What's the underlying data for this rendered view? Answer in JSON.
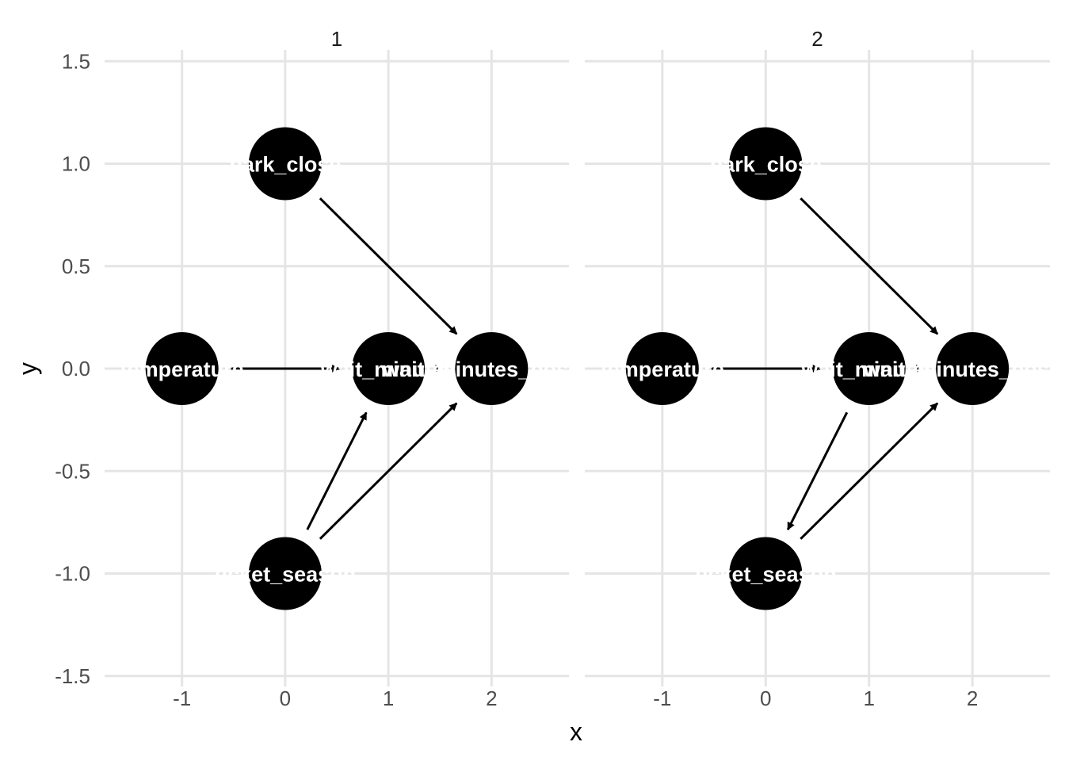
{
  "chart_data": {
    "type": "scatter",
    "xlabel": "x",
    "ylabel": "y",
    "xlim": [
      -1.75,
      2.75
    ],
    "ylim": [
      -1.5,
      1.5
    ],
    "x_ticks": [
      "-1",
      "0",
      "1",
      "2"
    ],
    "x_tick_values": [
      -1,
      0,
      1,
      2
    ],
    "y_ticks": [
      "1.5",
      "1.0",
      "0.5",
      "0.0",
      "-0.5",
      "-1.0",
      "-1.5"
    ],
    "y_tick_values": [
      1.5,
      1.0,
      0.5,
      0.0,
      -0.5,
      -1.0,
      -1.5
    ],
    "grid": true,
    "colors": {
      "node": "#000000",
      "node_text": "#ffffff",
      "edge": "#000000",
      "grid": "#e5e5e5"
    },
    "panels": [
      {
        "label": "1",
        "nodes": [
          {
            "name": "park_close",
            "x": 0,
            "y": 1
          },
          {
            "name": "temperature",
            "x": -1,
            "y": 0
          },
          {
            "name": "wait_minutes",
            "x": 1,
            "y": 0
          },
          {
            "name": "wait_minutes_posted",
            "x": 2,
            "y": 0
          },
          {
            "name": "ticket_season",
            "x": 0,
            "y": -1
          }
        ],
        "edges": [
          {
            "from": "park_close",
            "to": "wait_minutes_posted"
          },
          {
            "from": "ticket_season",
            "to": "wait_minutes"
          },
          {
            "from": "ticket_season",
            "to": "wait_minutes_posted"
          },
          {
            "from": "temperature",
            "to": "wait_minutes"
          },
          {
            "from": "wait_minutes",
            "to": "wait_minutes_posted"
          }
        ]
      },
      {
        "label": "2",
        "nodes": [
          {
            "name": "park_close",
            "x": 0,
            "y": 1
          },
          {
            "name": "temperature",
            "x": -1,
            "y": 0
          },
          {
            "name": "wait_minutes",
            "x": 1,
            "y": 0
          },
          {
            "name": "wait_minutes_posted",
            "x": 2,
            "y": 0
          },
          {
            "name": "ticket_season",
            "x": 0,
            "y": -1
          }
        ],
        "edges": [
          {
            "from": "park_close",
            "to": "wait_minutes_posted"
          },
          {
            "from": "wait_minutes",
            "to": "ticket_season"
          },
          {
            "from": "ticket_season",
            "to": "wait_minutes_posted"
          },
          {
            "from": "temperature",
            "to": "wait_minutes"
          },
          {
            "from": "wait_minutes",
            "to": "wait_minutes_posted"
          }
        ]
      }
    ]
  }
}
